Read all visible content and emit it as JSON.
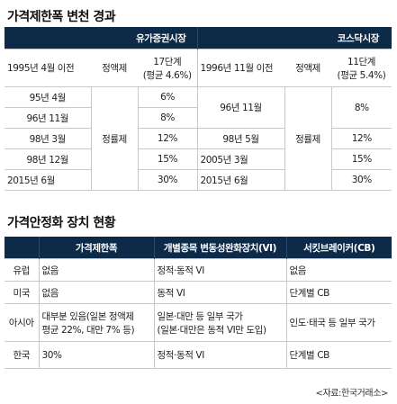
{
  "section1": {
    "title": "가격제한폭 변천 경과",
    "markets": [
      "유가증권시장",
      "코스닥시장"
    ],
    "kospi": {
      "header": {
        "date": "1995년 4월 이전",
        "system": "정액제",
        "limit_line1": "17단계",
        "limit_line2": "(평균 4.6%)"
      },
      "system_label": "정률제",
      "rows": [
        {
          "date": "95년 4월",
          "limit": "6%"
        },
        {
          "date": "96년 11월",
          "limit": "8%"
        },
        {
          "date": "98년 3월",
          "limit": "12%"
        },
        {
          "date": "98년 12월",
          "limit": "15%"
        },
        {
          "date": "2015년 6월",
          "limit": "30%"
        }
      ]
    },
    "kosdaq": {
      "header": {
        "date": "1996년 11월 이전",
        "system": "정액제",
        "limit_line1": "11단계",
        "limit_line2": "(평균 5.4%)"
      },
      "system_label": "정률제",
      "rows": [
        {
          "date": "96년 11월",
          "limit": "8%"
        },
        {
          "date": "98년 5월",
          "limit": "12%"
        },
        {
          "date": "2005년 3월",
          "limit": "15%"
        },
        {
          "date": "2015년 6월",
          "limit": "30%"
        }
      ]
    }
  },
  "section2": {
    "title": "가격안정화 장치 현황",
    "headers": [
      "",
      "가격제한폭",
      "개별종목 변동성완화장치(VI)",
      "서킷브레이커(CB)"
    ],
    "rows": [
      {
        "region": "유럽",
        "limit": [
          "없음"
        ],
        "vi": [
          "정적·동적 VI"
        ],
        "cb": [
          "없음"
        ]
      },
      {
        "region": "미국",
        "limit": [
          "없음"
        ],
        "vi": [
          "동적 VI"
        ],
        "cb": [
          "단계별 CB"
        ]
      },
      {
        "region": "아시아",
        "limit": [
          "대부분 있음(일본 정액제",
          "평균 22%, 대만 7% 등)"
        ],
        "vi": [
          "일본·대만 등 일부 국가",
          "(일본·대만은 동적 VI만 도입)"
        ],
        "cb": [
          "인도·태국 등 일부 국가"
        ]
      },
      {
        "region": "한국",
        "limit": [
          "30%"
        ],
        "vi": [
          "정적·동적 VI"
        ],
        "cb": [
          "단계별 CB"
        ]
      }
    ]
  },
  "source": "<자료:한국거래소>"
}
